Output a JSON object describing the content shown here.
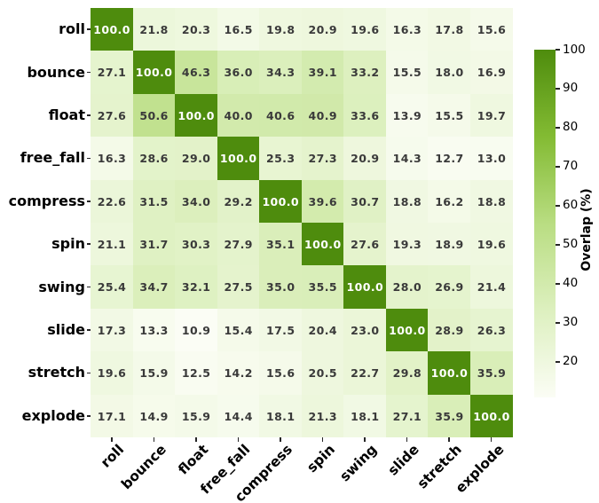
{
  "chart_data": {
    "type": "heatmap",
    "categories": [
      "roll",
      "bounce",
      "float",
      "free_fall",
      "compress",
      "spin",
      "swing",
      "slide",
      "stretch",
      "explode"
    ],
    "matrix": [
      [
        100.0,
        21.8,
        20.3,
        16.5,
        19.8,
        20.9,
        19.6,
        16.3,
        17.8,
        15.6
      ],
      [
        27.1,
        100.0,
        46.3,
        36.0,
        34.3,
        39.1,
        33.2,
        15.5,
        18.0,
        16.9
      ],
      [
        27.6,
        50.6,
        100.0,
        40.0,
        40.6,
        40.9,
        33.6,
        13.9,
        15.5,
        19.7
      ],
      [
        16.3,
        28.6,
        29.0,
        100.0,
        25.3,
        27.3,
        20.9,
        14.3,
        12.7,
        13.0
      ],
      [
        22.6,
        31.5,
        34.0,
        29.2,
        100.0,
        39.6,
        30.7,
        18.8,
        16.2,
        18.8
      ],
      [
        21.1,
        31.7,
        30.3,
        27.9,
        35.1,
        100.0,
        27.6,
        19.3,
        18.9,
        19.6
      ],
      [
        25.4,
        34.7,
        32.1,
        27.5,
        35.0,
        35.5,
        100.0,
        28.0,
        26.9,
        21.4
      ],
      [
        17.3,
        13.3,
        10.9,
        15.4,
        17.5,
        20.4,
        23.0,
        100.0,
        28.9,
        26.3
      ],
      [
        19.6,
        15.9,
        12.5,
        14.2,
        15.6,
        20.5,
        22.7,
        29.8,
        100.0,
        35.9
      ],
      [
        17.1,
        14.9,
        15.9,
        14.4,
        18.1,
        21.3,
        18.1,
        27.1,
        35.9,
        100.0
      ]
    ],
    "annot_decimals": 1,
    "colorbar": {
      "label": "Overlap (%)",
      "ticks": [
        100,
        90,
        80,
        70,
        60,
        50,
        40,
        30,
        20
      ],
      "vmin": 10.9,
      "vmax": 100
    },
    "colormap_stops": [
      {
        "pos": 0.0,
        "color": "#fbfdf5"
      },
      {
        "pos": 0.25,
        "color": "#ddf0bf"
      },
      {
        "pos": 0.5,
        "color": "#b9dd82"
      },
      {
        "pos": 0.75,
        "color": "#83bb33"
      },
      {
        "pos": 1.0,
        "color": "#4e8c0d"
      }
    ],
    "colors": {
      "annot_on_light": "#3a3a3a",
      "annot_on_dark": "#ffffff",
      "axis_text": "#000000",
      "tick_mark": "#262626"
    },
    "x_tick_rotation_deg": 45,
    "legend_position": "right",
    "grid": false
  }
}
